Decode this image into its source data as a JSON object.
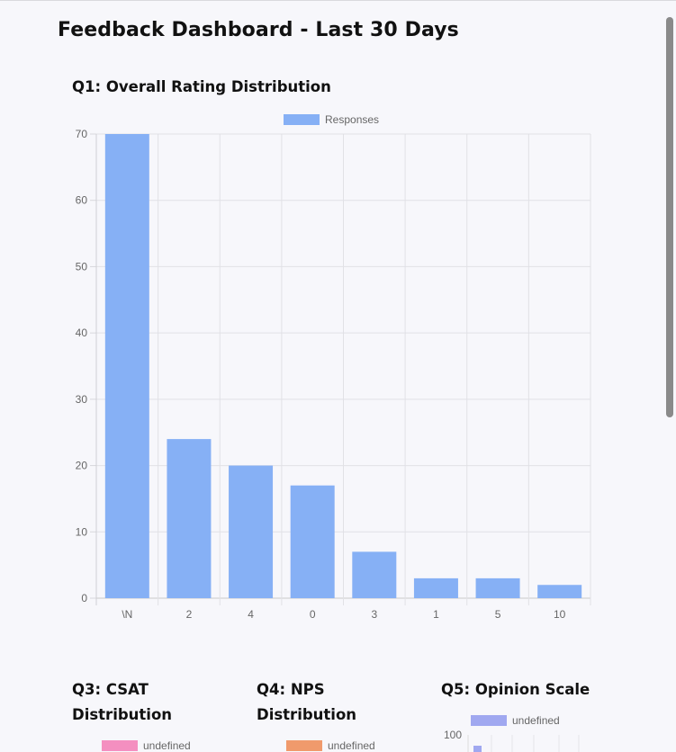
{
  "page": {
    "title": "Feedback Dashboard - Last 30 Days"
  },
  "q1": {
    "title": "Q1: Overall Rating Distribution",
    "legend_label": "Responses",
    "bar_color": "#86b0f5"
  },
  "chart_data": {
    "type": "bar",
    "categories": [
      "\\N",
      "2",
      "4",
      "0",
      "3",
      "1",
      "5",
      "10"
    ],
    "series": [
      {
        "name": "Responses",
        "values": [
          70,
          24,
          20,
          17,
          7,
          3,
          3,
          2
        ]
      }
    ],
    "ylim": [
      0,
      70
    ],
    "yticks": [
      0,
      10,
      20,
      30,
      40,
      50,
      60,
      70
    ],
    "grid": true,
    "legend": "top-center"
  },
  "q3": {
    "title": "Q3: CSAT Distribution",
    "legend_label": "undefined",
    "color": "#f48fc0"
  },
  "q4": {
    "title": "Q4: NPS Distribution",
    "legend_label": "undefined",
    "color": "#f09a6c"
  },
  "q5": {
    "title": "Q5: Opinion Scale",
    "legend_label": "undefined",
    "color": "#a0a8f0",
    "y_tick_label": "100"
  }
}
